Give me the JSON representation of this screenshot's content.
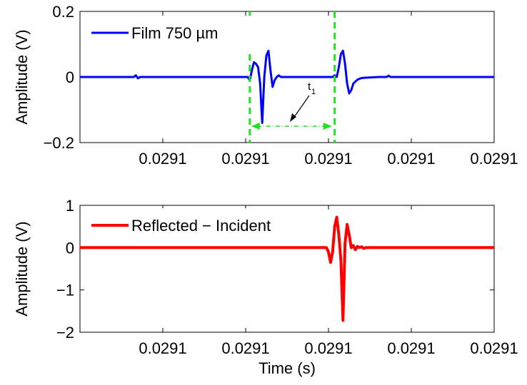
{
  "chart_data": [
    {
      "type": "line",
      "ylabel": "Amplitude (V)",
      "xlabel": "",
      "ylim": [
        -0.2,
        0.2
      ],
      "xlim": [
        0,
        1
      ],
      "yticks": [
        -0.2,
        0,
        0.2
      ],
      "ytick_labels": [
        "−0.2",
        "0",
        "0.2"
      ],
      "xticks": [
        0.2,
        0.4,
        0.6,
        0.8,
        1.0
      ],
      "xtick_labels": [
        "0.0291",
        "0.0291",
        "0.0291",
        "0.0291",
        "0.0291"
      ],
      "grid": false,
      "legend_position": "top-left",
      "series": [
        {
          "name": "Film 750 µm",
          "color": "#0000ff",
          "x": [
            0.0,
            0.13,
            0.135,
            0.14,
            0.145,
            0.35,
            0.405,
            0.41,
            0.415,
            0.42,
            0.425,
            0.43,
            0.435,
            0.44,
            0.445,
            0.45,
            0.455,
            0.46,
            0.465,
            0.47,
            0.475,
            0.48,
            0.485,
            0.49,
            0.6,
            0.61,
            0.615,
            0.62,
            0.625,
            0.63,
            0.635,
            0.64,
            0.645,
            0.65,
            0.655,
            0.66,
            0.67,
            0.68,
            0.72,
            0.74,
            0.745,
            0.75,
            1.0
          ],
          "y": [
            0.0,
            0.0,
            0.005,
            -0.004,
            0.0,
            0.0,
            0.0,
            -0.01,
            0.02,
            0.045,
            0.04,
            0.03,
            -0.02,
            -0.14,
            0.0,
            0.065,
            0.08,
            0.02,
            -0.03,
            -0.01,
            0.0,
            0.005,
            0.0,
            0.0,
            0.0,
            0.0,
            0.005,
            0.0,
            0.03,
            0.07,
            0.08,
            0.04,
            -0.02,
            -0.05,
            -0.04,
            -0.02,
            -0.008,
            -0.003,
            0.0,
            0.0,
            0.004,
            0.0,
            0.0
          ]
        }
      ],
      "vlines": {
        "color": "#22e022",
        "x": [
          0.41,
          0.615
        ]
      },
      "annotation": {
        "text": "t",
        "subscript": "1",
        "arrow_x": [
          0.41,
          0.615
        ],
        "arrow_y": -0.15
      }
    },
    {
      "type": "line",
      "ylabel": "Amplitude (V)",
      "xlabel": "Time (s)",
      "ylim": [
        -2,
        1
      ],
      "xlim": [
        0,
        1
      ],
      "yticks": [
        -2,
        -1,
        0,
        1
      ],
      "ytick_labels": [
        "−2",
        "−1",
        "0",
        "1"
      ],
      "xticks": [
        0.2,
        0.4,
        0.6,
        0.8,
        1.0
      ],
      "xtick_labels": [
        "0.0291",
        "0.0291",
        "0.0291",
        "0.0291",
        "0.0291"
      ],
      "grid": false,
      "legend_position": "top-left",
      "series": [
        {
          "name": "Reflected − Incident",
          "color": "#ff0000",
          "x": [
            0.0,
            0.595,
            0.6,
            0.605,
            0.61,
            0.615,
            0.62,
            0.625,
            0.63,
            0.635,
            0.64,
            0.645,
            0.65,
            0.655,
            0.66,
            0.665,
            0.67,
            0.675,
            0.68,
            0.685,
            0.69,
            0.7,
            1.0
          ],
          "y": [
            0.0,
            0.0,
            -0.1,
            -0.35,
            -0.1,
            0.5,
            0.72,
            0.3,
            -0.3,
            -1.72,
            0.1,
            0.55,
            0.3,
            0.0,
            0.05,
            -0.05,
            0.03,
            0.0,
            0.02,
            -0.02,
            0.0,
            0.0,
            0.0
          ]
        }
      ]
    }
  ]
}
